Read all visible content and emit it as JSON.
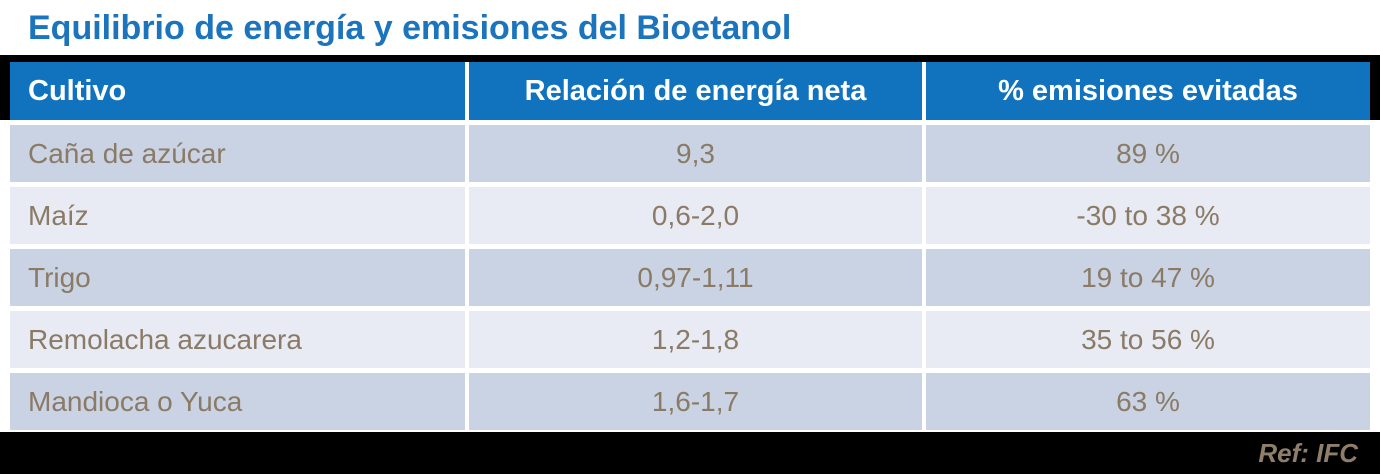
{
  "title": {
    "text": "Equilibrio de energía y emisiones del Bioetanol",
    "color": "#1B74BC"
  },
  "table": {
    "header": {
      "columns": [
        "Cultivo",
        "Relación de energía neta",
        "% emisiones evitadas"
      ],
      "bg": "#1173BD",
      "text_color": "#FFFFFF"
    },
    "rows": [
      {
        "cultivo": "Caña de azúcar",
        "relacion": "9,3",
        "emisiones": "89 %"
      },
      {
        "cultivo": "Maíz",
        "relacion": "0,6-2,0",
        "emisiones": "-30 to 38 %"
      },
      {
        "cultivo": "Trigo",
        "relacion": "0,97-1,11",
        "emisiones": "19 to 47 %"
      },
      {
        "cultivo": "Remolacha azucarera",
        "relacion": "1,2-1,8",
        "emisiones": "35 to 56 %"
      },
      {
        "cultivo": "Mandioca o Yuca",
        "relacion": "1,6-1,7",
        "emisiones": "63 %"
      }
    ],
    "row_odd_bg": "#C9D3E3",
    "row_even_bg": "#E8EBF3",
    "cell_text_color": "#8A7A66",
    "rule_color": "#000000"
  },
  "footer": {
    "ref": "Ref: IFC",
    "bg": "#000000",
    "text_color": "#8F7E69"
  }
}
